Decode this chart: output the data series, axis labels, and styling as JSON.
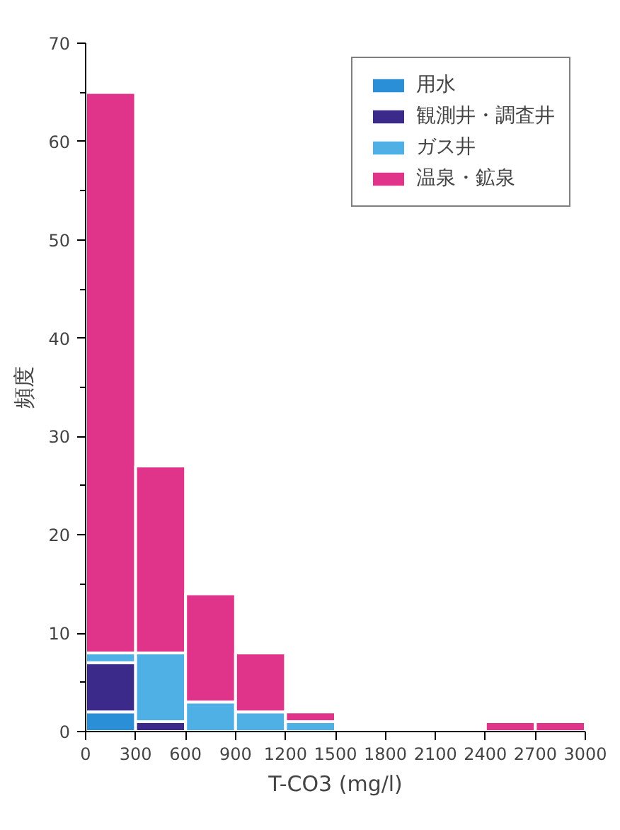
{
  "chart_data": {
    "type": "bar",
    "stacked": true,
    "xlabel": "T-CO3 (mg/l)",
    "ylabel": "頻度",
    "x": [
      150,
      450,
      750,
      1050,
      1350,
      1650,
      1950,
      2250,
      2550,
      2850
    ],
    "series": [
      {
        "name": "用水",
        "color": "#2a8fd6",
        "values": [
          2,
          0,
          0,
          0,
          0,
          0,
          0,
          0,
          0,
          0
        ]
      },
      {
        "name": "観測井・調査井",
        "color": "#3b2a8a",
        "values": [
          5,
          1,
          0,
          0,
          0,
          0,
          0,
          0,
          0,
          0
        ]
      },
      {
        "name": "ガス井",
        "color": "#4fb0e6",
        "values": [
          1,
          7,
          3,
          2,
          1,
          0,
          0,
          0,
          0,
          0
        ]
      },
      {
        "name": "温泉・鉱泉",
        "color": "#e0338a",
        "values": [
          57,
          19,
          11,
          6,
          1,
          0,
          0,
          0,
          1,
          1
        ]
      }
    ],
    "xlim": [
      0,
      3000
    ],
    "xticks": [
      0,
      300,
      600,
      900,
      1200,
      1500,
      1800,
      2100,
      2400,
      2700,
      3000
    ],
    "ylim": [
      0,
      70
    ],
    "yticks": [
      0,
      10,
      20,
      30,
      40,
      50,
      60,
      70
    ],
    "grid": false,
    "legend": "top right"
  }
}
